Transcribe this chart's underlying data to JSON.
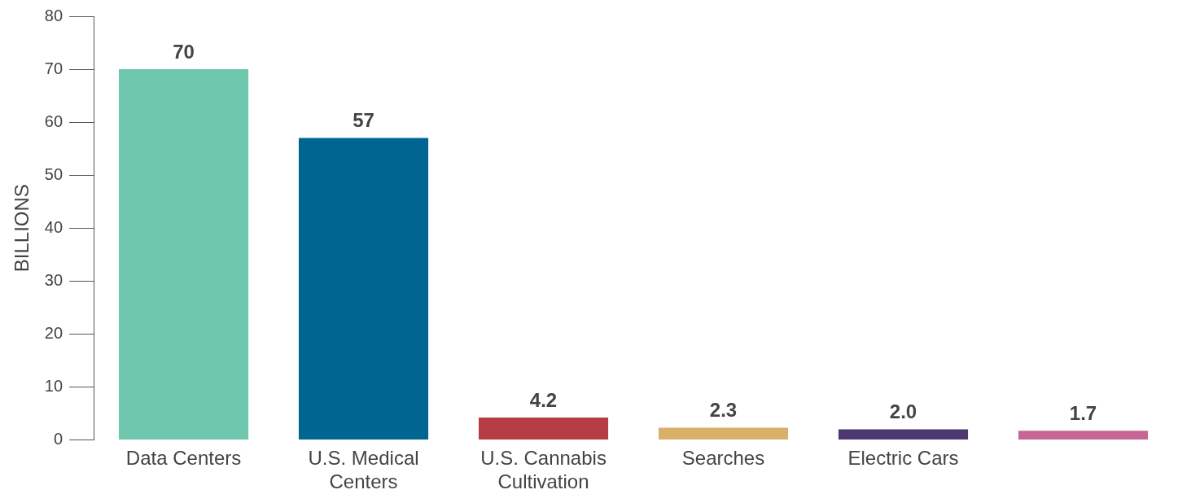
{
  "chart_data": {
    "type": "bar",
    "ylabel": "BILLIONS",
    "categories": [
      "Data Centers",
      "U.S. Medical Centers",
      "U.S. Cannabis Cultivation",
      "Searches",
      "Electric Cars",
      null
    ],
    "values": [
      70,
      57,
      4.2,
      2.3,
      2.0,
      1.7
    ],
    "colors": [
      "#6fc7ae",
      "#006691",
      "#b73d45",
      "#d8b06a",
      "#4c3870",
      "#c96595"
    ],
    "value_labels": [
      "70",
      "57",
      "4.2",
      "2.3",
      "2.0",
      "1.7"
    ],
    "ylim": [
      0,
      80
    ],
    "yticks": [
      0,
      10,
      20,
      30,
      40,
      50,
      60,
      70,
      80
    ],
    "grid": false,
    "legend": false
  }
}
